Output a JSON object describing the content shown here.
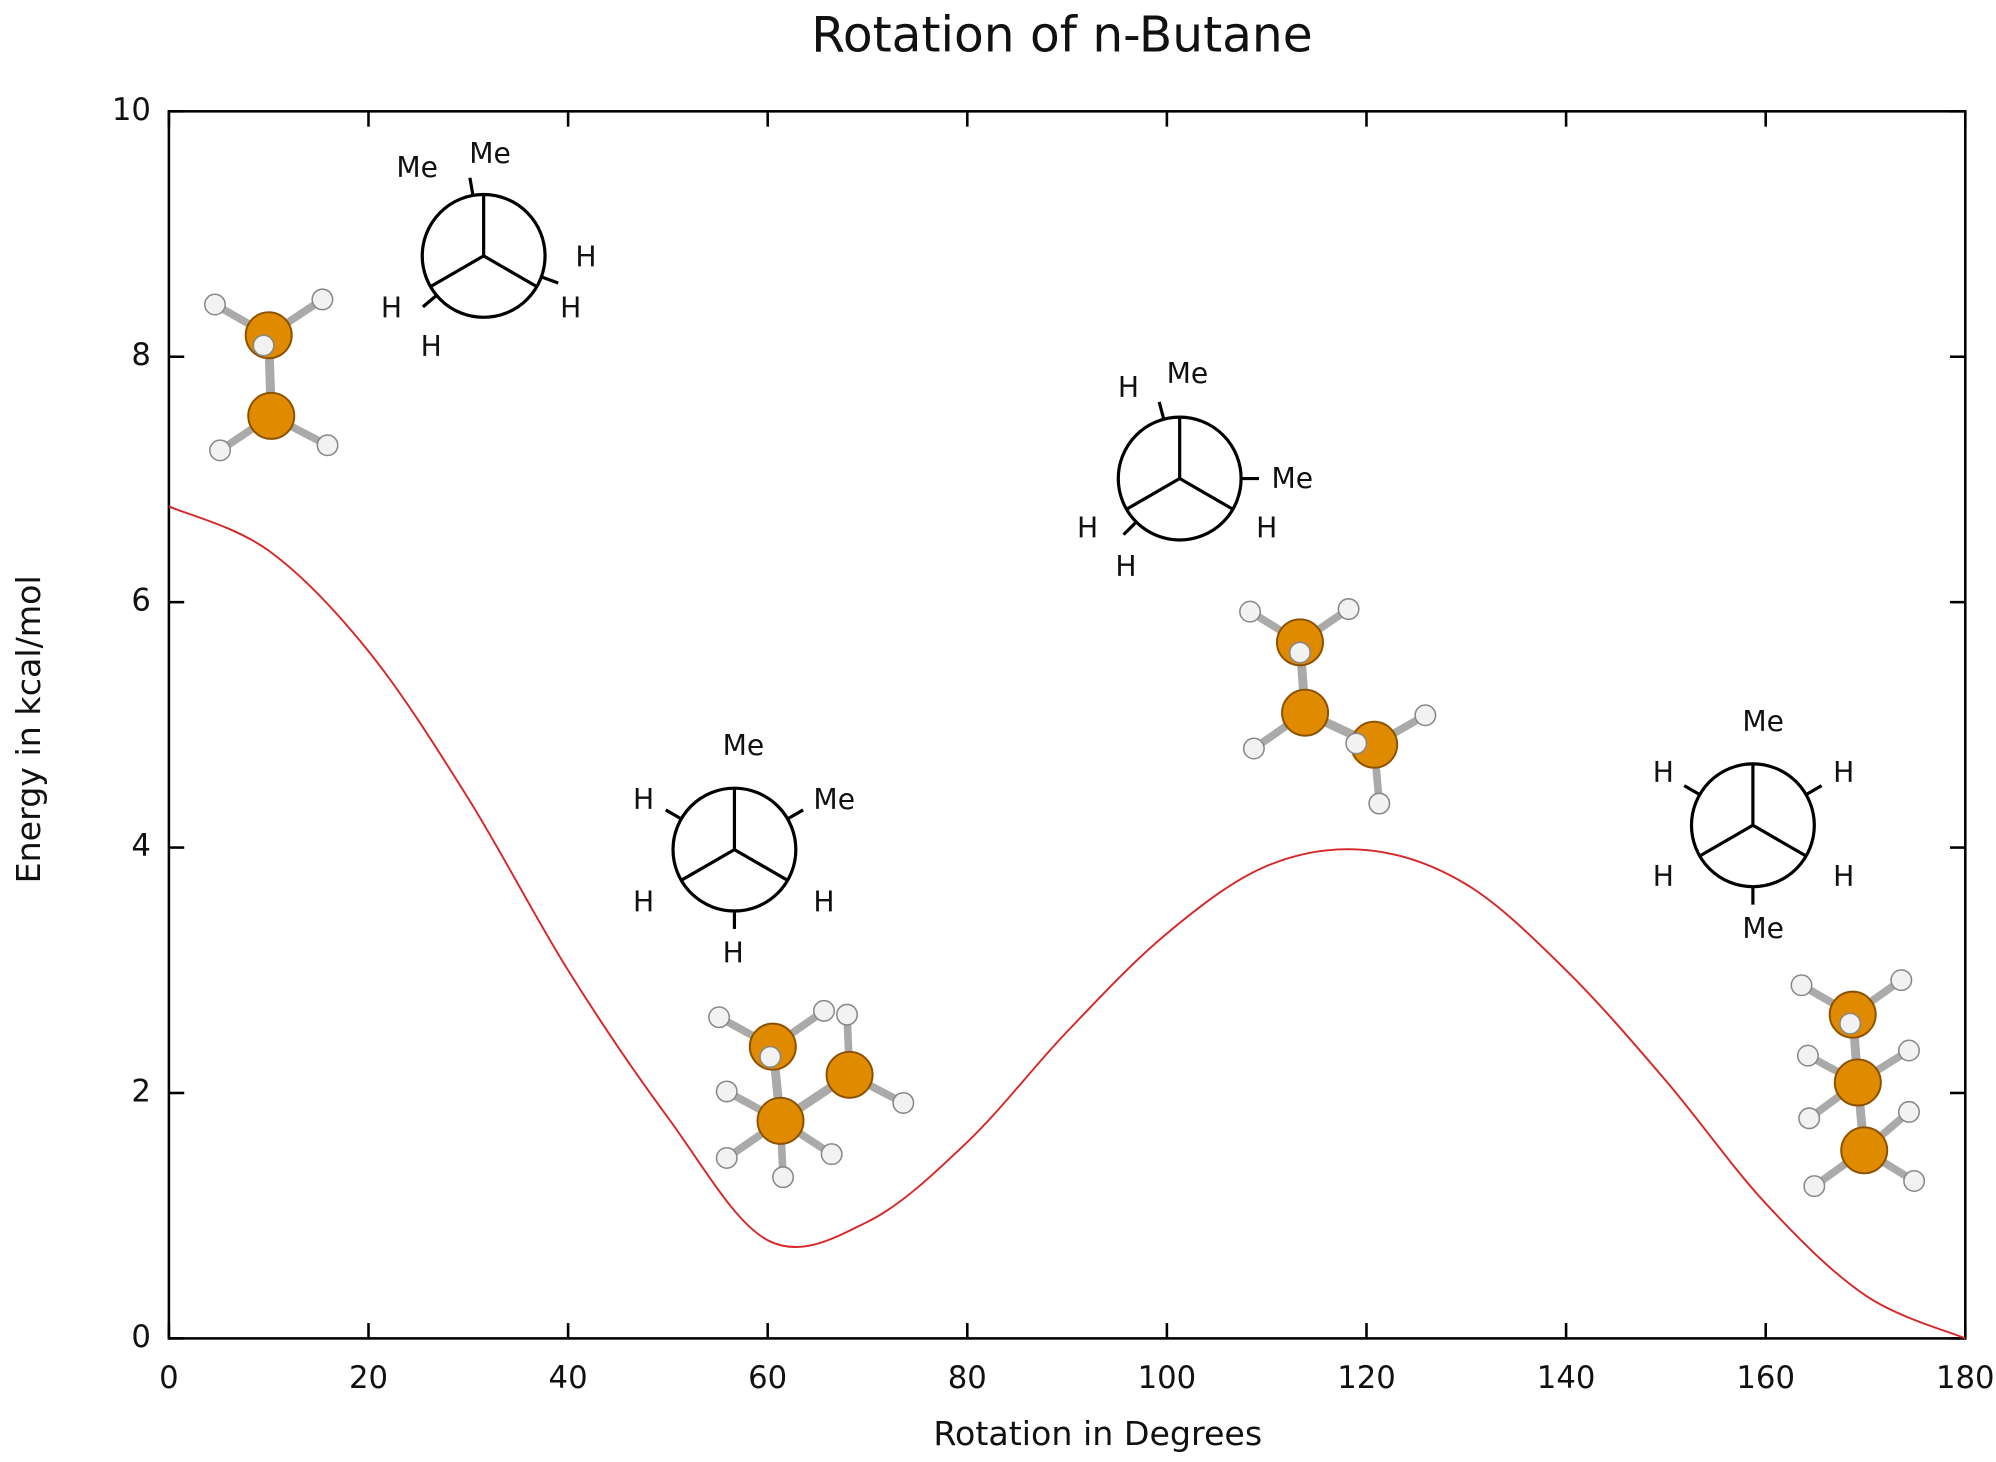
{
  "chart_data": {
    "type": "line",
    "title": "Rotation of n-Butane",
    "x_label": "Rotation in Degrees",
    "y_label": "Energy in kcal/mol",
    "x": [
      0,
      10,
      20,
      30,
      40,
      50,
      60,
      70,
      80,
      90,
      100,
      110,
      120,
      130,
      140,
      150,
      160,
      170,
      180
    ],
    "values": [
      6.78,
      6.42,
      5.6,
      4.4,
      3.0,
      1.8,
      0.8,
      0.95,
      1.6,
      2.5,
      3.3,
      3.85,
      3.98,
      3.7,
      3.0,
      2.1,
      1.1,
      0.35,
      0
    ],
    "color": "#d62728",
    "xlim": [
      0,
      180
    ],
    "xticks": [
      0,
      20,
      40,
      60,
      80,
      100,
      120,
      140,
      160,
      180
    ],
    "ylim": [
      0,
      10
    ],
    "yticks": [
      0,
      2,
      4,
      6,
      8,
      10
    ],
    "newman_projections": [
      {
        "labels": [
          "Me",
          "Me",
          "H",
          "H",
          "H",
          "H"
        ]
      },
      {
        "labels": [
          "Me",
          "Me",
          "H",
          "H",
          "H",
          "H"
        ]
      },
      {
        "labels": [
          "Me",
          "H",
          "Me",
          "H",
          "H",
          "H"
        ]
      },
      {
        "labels": [
          "Me",
          "H",
          "H",
          "H",
          "H",
          "Me"
        ]
      }
    ]
  }
}
